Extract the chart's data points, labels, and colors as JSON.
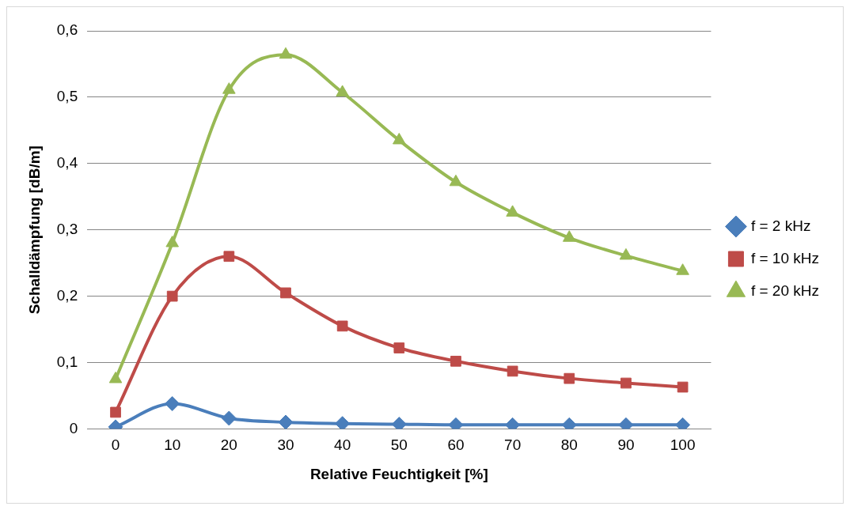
{
  "chart_data": {
    "type": "line",
    "xlabel": "Relative Feuchtigkeit [%]",
    "ylabel": "Schalldämpfung [dB/m]",
    "categories": [
      "0",
      "10",
      "20",
      "30",
      "40",
      "50",
      "60",
      "70",
      "80",
      "90",
      "100"
    ],
    "ylim": [
      0,
      0.6
    ],
    "yticks": [
      {
        "value": 0,
        "label": "0"
      },
      {
        "value": 0.1,
        "label": "0,1"
      },
      {
        "value": 0.2,
        "label": "0,2"
      },
      {
        "value": 0.3,
        "label": "0,3"
      },
      {
        "value": 0.4,
        "label": "0,4"
      },
      {
        "value": 0.5,
        "label": "0,5"
      },
      {
        "value": 0.6,
        "label": "0,6"
      }
    ],
    "grid": "y",
    "legend": "right",
    "series": [
      {
        "name": "f = 2 kHz",
        "color": "#4a7ebb",
        "marker": "diamond",
        "values": [
          0.003,
          0.038,
          0.016,
          0.01,
          0.008,
          0.007,
          0.006,
          0.006,
          0.006,
          0.006,
          0.006
        ]
      },
      {
        "name": "f = 10 kHz",
        "color": "#be4b48",
        "marker": "square",
        "values": [
          0.025,
          0.2,
          0.26,
          0.205,
          0.155,
          0.122,
          0.102,
          0.087,
          0.076,
          0.069,
          0.063
        ]
      },
      {
        "name": "f = 20 kHz",
        "color": "#98b954",
        "marker": "triangle",
        "values": [
          0.075,
          0.28,
          0.511,
          0.564,
          0.507,
          0.435,
          0.372,
          0.326,
          0.288,
          0.261,
          0.238
        ]
      }
    ]
  }
}
